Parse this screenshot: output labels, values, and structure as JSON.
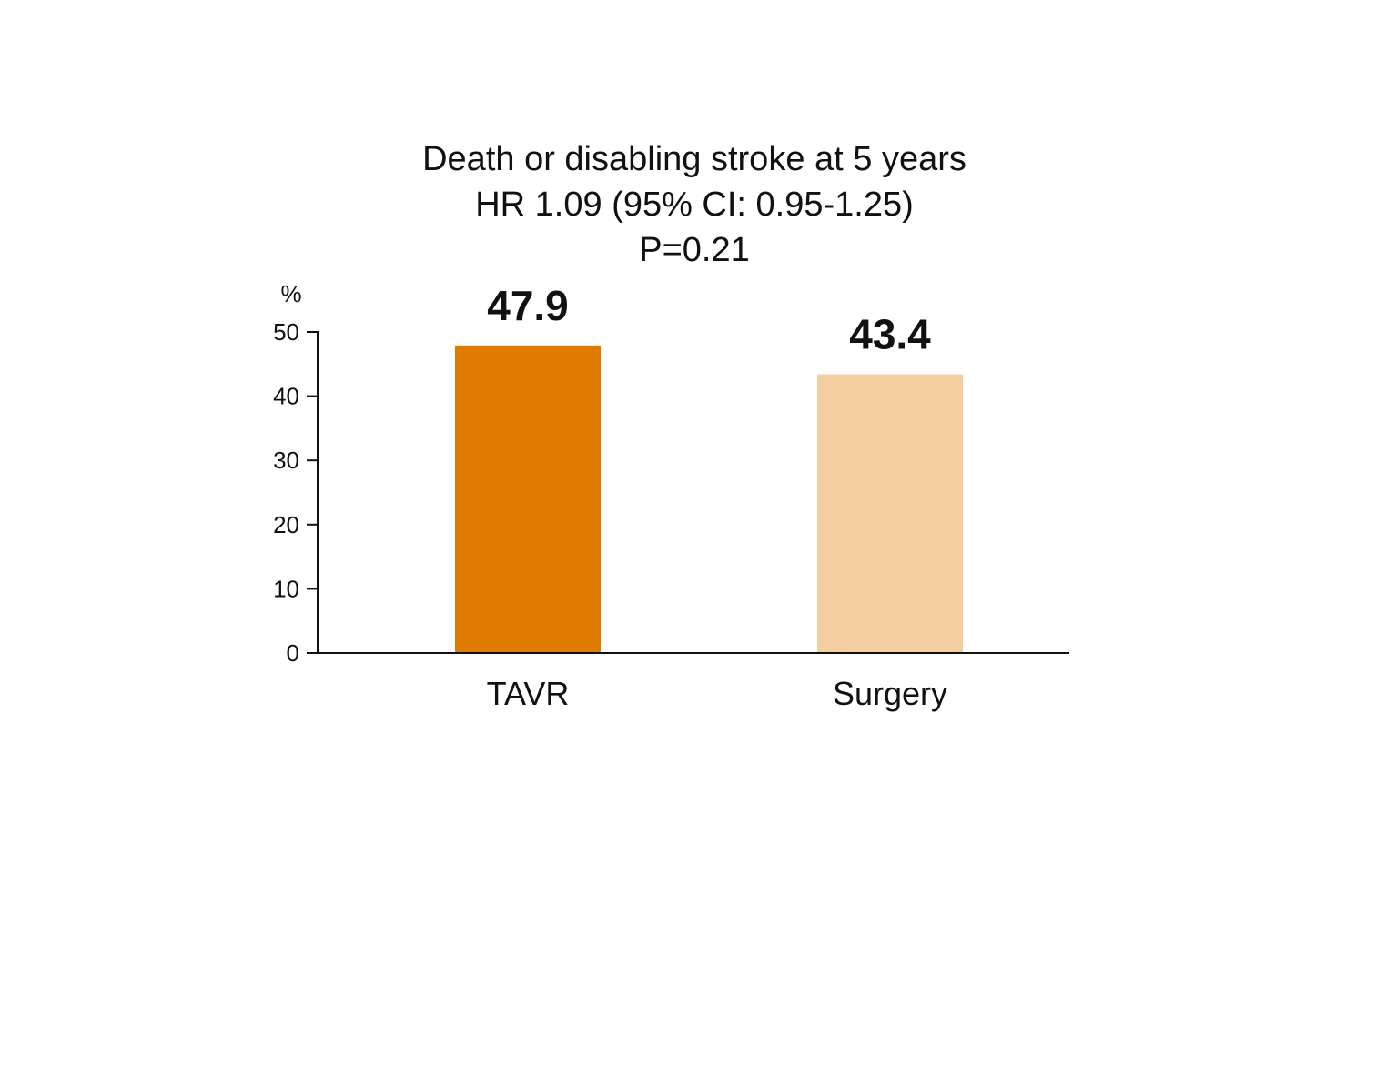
{
  "chart_data": {
    "type": "bar",
    "title_lines": [
      "Death or disabling stroke at 5 years",
      "HR 1.09 (95% CI: 0.95-1.25)",
      "P=0.21"
    ],
    "ylabel": "%",
    "xlabel": "",
    "ylim": [
      0,
      50
    ],
    "yticks": [
      "0",
      "10",
      "20",
      "30",
      "40",
      "50"
    ],
    "categories": [
      "TAVR",
      "Surgery"
    ],
    "values": [
      47.9,
      43.4
    ],
    "value_labels": [
      "47.9",
      "43.4"
    ],
    "colors": [
      "#df7c00",
      "#f4cda0"
    ],
    "grid": false,
    "legend": "none"
  }
}
